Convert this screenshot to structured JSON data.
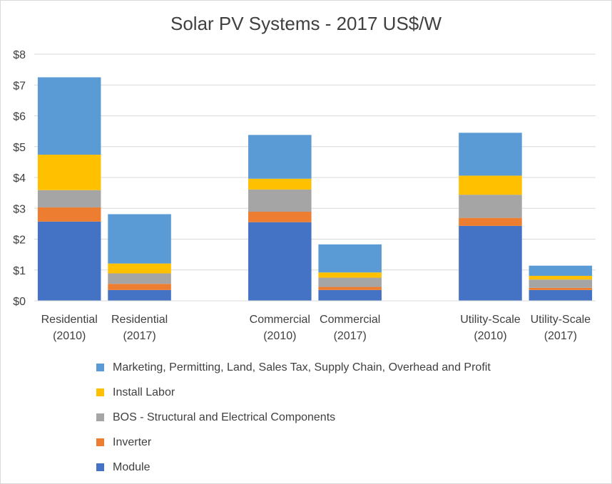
{
  "chart_data": {
    "type": "bar",
    "stacked": true,
    "title": "Solar PV Systems - 2017 US$/W",
    "xlabel": "",
    "ylabel": "",
    "ylim": [
      0,
      8
    ],
    "yticks": [
      "$0",
      "$1",
      "$2",
      "$3",
      "$4",
      "$5",
      "$6",
      "$7",
      "$8"
    ],
    "grid": true,
    "legend_position": "bottom",
    "categories": [
      [
        "Residential",
        "(2010)"
      ],
      [
        "Residential",
        "(2017)"
      ],
      [
        "Commercial",
        "(2010)"
      ],
      [
        "Commercial",
        "(2017)"
      ],
      [
        "Utility-Scale",
        "(2010)"
      ],
      [
        "Utility-Scale",
        "(2017)"
      ]
    ],
    "groups": [
      [
        0,
        1
      ],
      [
        2,
        3
      ],
      [
        4,
        5
      ]
    ],
    "series": [
      {
        "name": "Module",
        "color": "#4472c4",
        "values": [
          2.57,
          0.35,
          2.55,
          0.35,
          2.43,
          0.35
        ]
      },
      {
        "name": "Inverter",
        "color": "#ed7d31",
        "values": [
          0.46,
          0.2,
          0.34,
          0.1,
          0.26,
          0.07
        ]
      },
      {
        "name": "BOS - Structural and Electrical Components",
        "color": "#a5a5a5",
        "values": [
          0.56,
          0.34,
          0.72,
          0.3,
          0.75,
          0.27
        ]
      },
      {
        "name": "Install Labor",
        "color": "#ffc000",
        "values": [
          1.15,
          0.32,
          0.35,
          0.17,
          0.62,
          0.12
        ]
      },
      {
        "name": "Marketing, Permitting, Land, Sales Tax, Supply Chain, Overhead and Profit",
        "color": "#5b9bd5",
        "values": [
          2.51,
          1.6,
          1.42,
          0.91,
          1.39,
          0.33
        ]
      }
    ]
  }
}
